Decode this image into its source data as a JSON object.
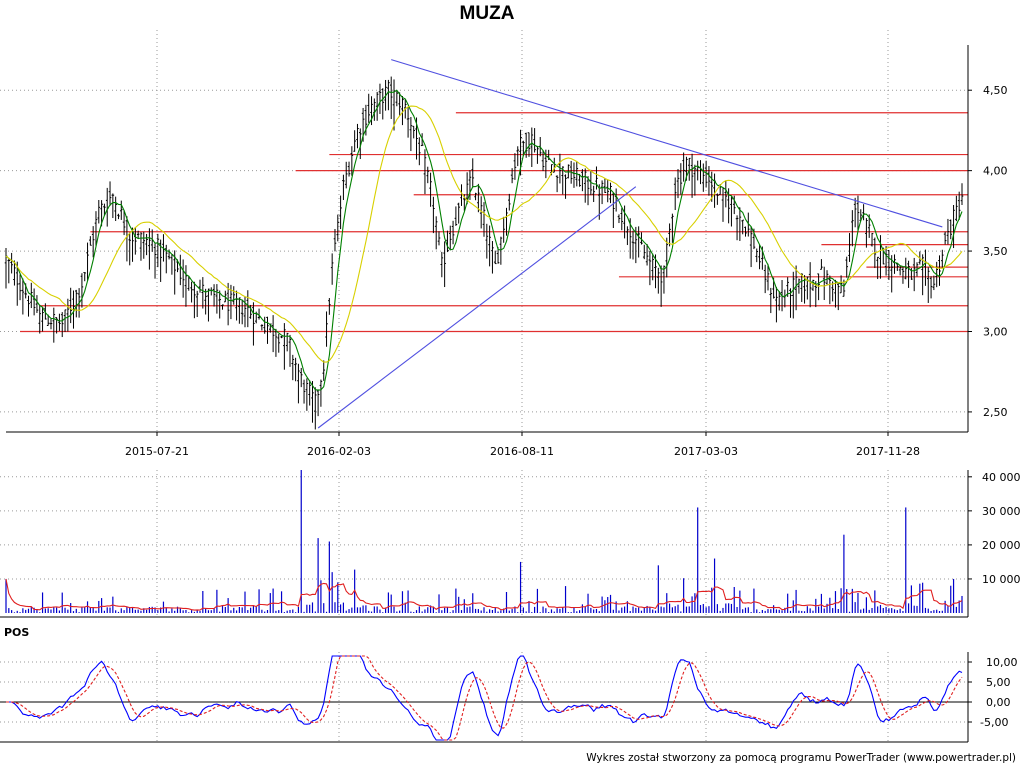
{
  "chart_data": [
    {
      "type": "candlestick",
      "title": "MUZA",
      "x_ticks": [
        "2015-07-21",
        "2016-02-03",
        "2016-08-11",
        "2017-03-03",
        "2017-11-28"
      ],
      "ylim": [
        2.4,
        4.75
      ],
      "y_ticks": [
        {
          "value": 2.5,
          "label": "2,50"
        },
        {
          "value": 3.0,
          "label": "3,00"
        },
        {
          "value": 3.5,
          "label": "3,50"
        },
        {
          "value": 4.0,
          "label": "4,00"
        },
        {
          "value": 4.5,
          "label": "4,50"
        }
      ],
      "price_path": [
        [
          0,
          3.45
        ],
        [
          5,
          3.3
        ],
        [
          12,
          3.1
        ],
        [
          20,
          3.05
        ],
        [
          27,
          3.3
        ],
        [
          33,
          3.75
        ],
        [
          38,
          3.85
        ],
        [
          44,
          3.6
        ],
        [
          52,
          3.55
        ],
        [
          58,
          3.45
        ],
        [
          65,
          3.3
        ],
        [
          75,
          3.2
        ],
        [
          85,
          3.15
        ],
        [
          92,
          3.05
        ],
        [
          100,
          2.95
        ],
        [
          105,
          2.7
        ],
        [
          110,
          2.55
        ],
        [
          113,
          2.8
        ],
        [
          116,
          3.4
        ],
        [
          120,
          3.9
        ],
        [
          125,
          4.25
        ],
        [
          130,
          4.4
        ],
        [
          136,
          4.5
        ],
        [
          142,
          4.4
        ],
        [
          148,
          4.1
        ],
        [
          152,
          3.8
        ],
        [
          155,
          3.4
        ],
        [
          158,
          3.6
        ],
        [
          162,
          3.8
        ],
        [
          166,
          3.95
        ],
        [
          170,
          3.7
        ],
        [
          174,
          3.4
        ],
        [
          178,
          3.75
        ],
        [
          182,
          4.15
        ],
        [
          187,
          4.2
        ],
        [
          192,
          4.05
        ],
        [
          198,
          4.0
        ],
        [
          204,
          3.95
        ],
        [
          210,
          3.9
        ],
        [
          215,
          3.85
        ],
        [
          220,
          3.7
        ],
        [
          225,
          3.55
        ],
        [
          230,
          3.4
        ],
        [
          234,
          3.35
        ],
        [
          238,
          3.9
        ],
        [
          242,
          4.05
        ],
        [
          246,
          4.0
        ],
        [
          250,
          3.95
        ],
        [
          254,
          3.85
        ],
        [
          258,
          3.8
        ],
        [
          262,
          3.7
        ],
        [
          266,
          3.55
        ],
        [
          270,
          3.35
        ],
        [
          274,
          3.2
        ],
        [
          278,
          3.25
        ],
        [
          282,
          3.3
        ],
        [
          286,
          3.3
        ],
        [
          290,
          3.35
        ],
        [
          294,
          3.3
        ],
        [
          298,
          3.25
        ],
        [
          302,
          3.8
        ],
        [
          306,
          3.65
        ],
        [
          310,
          3.5
        ],
        [
          314,
          3.45
        ],
        [
          318,
          3.4
        ],
        [
          322,
          3.35
        ],
        [
          326,
          3.4
        ],
        [
          330,
          3.3
        ],
        [
          334,
          3.55
        ],
        [
          338,
          3.75
        ],
        [
          340,
          3.85
        ]
      ],
      "moving_averages": [
        {
          "name": "short",
          "period": 5,
          "color": "#008000"
        },
        {
          "name": "long",
          "period": 20,
          "color": "#d8d000"
        }
      ],
      "support_resistance": [
        {
          "value": 4.36,
          "x_start": 160,
          "color": "#e03030"
        },
        {
          "value": 4.1,
          "x_start": 115,
          "color": "#e03030"
        },
        {
          "value": 4.0,
          "x_start": 103,
          "color": "#e03030"
        },
        {
          "value": 3.85,
          "x_start": 145,
          "color": "#e03030"
        },
        {
          "value": 3.62,
          "x_start": 30,
          "color": "#e03030"
        },
        {
          "value": 3.54,
          "x_start": 290,
          "color": "#e03030"
        },
        {
          "value": 3.4,
          "x_start": 306,
          "color": "#e03030"
        },
        {
          "value": 3.34,
          "x_start": 218,
          "color": "#e03030"
        },
        {
          "value": 3.16,
          "x_start": 12,
          "color": "#e03030"
        },
        {
          "value": 3.0,
          "x_start": 5,
          "color": "#e03030"
        }
      ],
      "trendlines": [
        {
          "from": [
            111,
            2.4
          ],
          "to": [
            224,
            3.9
          ],
          "color": "#5050e0"
        },
        {
          "from": [
            137,
            4.69
          ],
          "to": [
            333,
            3.65
          ],
          "color": "#5050e0"
        }
      ],
      "candle_color": "#000000"
    },
    {
      "type": "bar",
      "title": "",
      "ylim": [
        0,
        42000
      ],
      "y_ticks": [
        {
          "value": 10000,
          "label": "10 000"
        },
        {
          "value": 20000,
          "label": "20 000"
        },
        {
          "value": 30000,
          "label": "30 000"
        },
        {
          "value": 40000,
          "label": "40 000"
        }
      ],
      "spikes": [
        [
          0,
          10000
        ],
        [
          20,
          6000
        ],
        [
          105,
          42000
        ],
        [
          111,
          22000
        ],
        [
          115,
          21000
        ],
        [
          116,
          12000
        ],
        [
          118,
          9000
        ],
        [
          183,
          15000
        ],
        [
          232,
          14000
        ],
        [
          246,
          31000
        ],
        [
          252,
          16000
        ],
        [
          298,
          23000
        ],
        [
          320,
          31000
        ],
        [
          337,
          10000
        ]
      ],
      "bar_color": "#0000cc",
      "average_color": "#e02020"
    },
    {
      "type": "line",
      "title": "POS",
      "ylim": [
        -10,
        12.5
      ],
      "y_ticks": [
        {
          "value": 10,
          "label": "10,00"
        },
        {
          "value": 5,
          "label": "5,00"
        },
        {
          "value": 0,
          "label": "0,00"
        },
        {
          "value": -5,
          "label": "-5,00"
        }
      ],
      "series": [
        {
          "color": "#0000ff"
        },
        {
          "color": "#e02020"
        }
      ]
    }
  ],
  "footer": "Wykres został stworzony za pomocą programu PowerTrader (www.powertrader.pl)"
}
